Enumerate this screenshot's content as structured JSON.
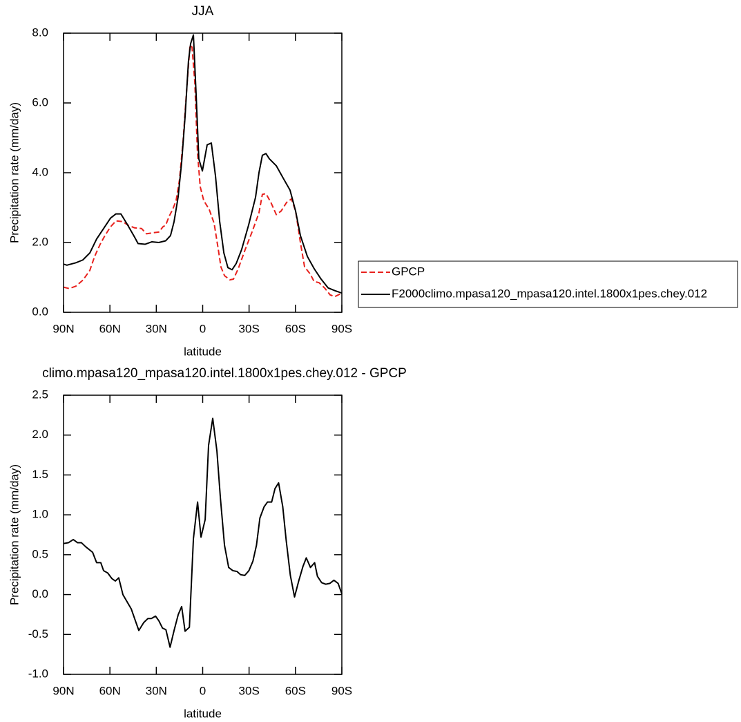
{
  "chart_data": [
    {
      "type": "line",
      "title": "JJA",
      "x_label": "latitude",
      "y_label": "Precipitation rate (mm/day)",
      "xlim": [
        90,
        -90
      ],
      "xticks": [
        {
          "value": 90,
          "label": "90N"
        },
        {
          "value": 60,
          "label": "60N"
        },
        {
          "value": 30,
          "label": "30N"
        },
        0,
        {
          "value": -30,
          "label": "30S"
        },
        {
          "value": -60,
          "label": "60S"
        },
        {
          "value": -90,
          "label": "90S"
        }
      ],
      "ylim": [
        0,
        8
      ],
      "yticks": [
        {
          "value": 0,
          "label": "0.0"
        },
        {
          "value": 2,
          "label": "2.0"
        },
        {
          "value": 4,
          "label": "4.0"
        },
        {
          "value": 6,
          "label": "6.0"
        },
        {
          "value": 8,
          "label": "8.0"
        }
      ],
      "legend": "outside-right",
      "series": [
        {
          "name": "GPCP",
          "color": "#e8201c",
          "line_style": "dashed",
          "x": [
            90,
            86.4,
            82,
            77.5,
            73,
            69.9,
            66.3,
            63.2,
            59.6,
            56.1,
            51.6,
            48.5,
            44,
            39.5,
            36.4,
            31.9,
            28.4,
            25.7,
            23.9,
            21.7,
            19.4,
            17.2,
            15,
            12.7,
            10.5,
            8.2,
            6.9,
            5.1,
            3.4,
            1.6,
            -0.7,
            -4.2,
            -7.4,
            -10.1,
            -11.8,
            -14.1,
            -17.6,
            -19.9,
            -23,
            -27.5,
            -31.9,
            -36.4,
            -38.6,
            -40.9,
            -44.1,
            -47.6,
            -50.7,
            -54.3,
            -57.4,
            -60.1,
            -63.2,
            -65.9,
            -69.5,
            -72.1,
            -75.2,
            -78.8,
            -82.4,
            -85.5,
            -90
          ],
          "values": [
            0.72,
            0.68,
            0.75,
            0.92,
            1.2,
            1.6,
            1.95,
            2.2,
            2.45,
            2.62,
            2.6,
            2.5,
            2.42,
            2.4,
            2.25,
            2.28,
            2.3,
            2.45,
            2.5,
            2.75,
            2.95,
            3.2,
            3.8,
            4.9,
            6.3,
            7.65,
            7.6,
            6.6,
            4.6,
            3.6,
            3.2,
            2.95,
            2.55,
            1.8,
            1.3,
            1.05,
            0.93,
            0.95,
            1.25,
            1.8,
            2.3,
            2.85,
            3.38,
            3.4,
            3.15,
            2.8,
            2.9,
            3.15,
            3.25,
            2.9,
            2.0,
            1.3,
            1.1,
            0.88,
            0.85,
            0.7,
            0.5,
            0.45,
            0.55
          ]
        },
        {
          "name": "F2000climo.mpasa120_mpasa120.intel.1800x1pes.chey.012",
          "color": "#000000",
          "line_style": "solid",
          "x": [
            90,
            87.8,
            82,
            77.5,
            73,
            68.6,
            64.1,
            59.6,
            56.1,
            52.9,
            48.5,
            44,
            41.8,
            37.3,
            32.8,
            28.4,
            23.9,
            20.8,
            18.5,
            15.9,
            13.6,
            11.4,
            9.2,
            7.8,
            6,
            4.2,
            2.5,
            0.2,
            -2.9,
            -5.6,
            -8.3,
            -11,
            -13.7,
            -16.3,
            -19,
            -21.7,
            -25.2,
            -29.7,
            -34.2,
            -36.4,
            -38.6,
            -40.9,
            -43.1,
            -47.6,
            -52,
            -56.5,
            -60.1,
            -63.2,
            -67.7,
            -72.1,
            -76.6,
            -81.1,
            -85.5,
            -90
          ],
          "values": [
            1.38,
            1.35,
            1.42,
            1.5,
            1.7,
            2.1,
            2.4,
            2.7,
            2.82,
            2.82,
            2.5,
            2.15,
            1.97,
            1.95,
            2.02,
            2.0,
            2.05,
            2.2,
            2.6,
            3.3,
            4.3,
            5.6,
            7.2,
            7.7,
            7.95,
            6.2,
            4.4,
            4.05,
            4.8,
            4.85,
            3.9,
            2.6,
            1.7,
            1.28,
            1.22,
            1.4,
            1.8,
            2.5,
            3.3,
            4.0,
            4.5,
            4.55,
            4.4,
            4.2,
            3.85,
            3.5,
            2.9,
            2.2,
            1.6,
            1.25,
            0.95,
            0.7,
            0.62,
            0.55
          ]
        }
      ]
    },
    {
      "type": "line",
      "title": "climo.mpasa120_mpasa120.intel.1800x1pes.chey.012 - GPCP",
      "x_label": "latitude",
      "y_label": "Precipitation rate (mm/day)",
      "xlim": [
        90,
        -90
      ],
      "xticks": [
        {
          "value": 90,
          "label": "90N"
        },
        {
          "value": 60,
          "label": "60N"
        },
        {
          "value": 30,
          "label": "30N"
        },
        0,
        {
          "value": -30,
          "label": "30S"
        },
        {
          "value": -60,
          "label": "60S"
        },
        {
          "value": -90,
          "label": "90S"
        }
      ],
      "ylim": [
        -1,
        2.5
      ],
      "yticks": [
        {
          "value": -1,
          "label": "-1.0"
        },
        {
          "value": -0.5,
          "label": "-0.5"
        },
        {
          "value": 0,
          "label": "0.0"
        },
        0.5,
        {
          "value": 1,
          "label": "1.0"
        },
        1.5,
        {
          "value": 2,
          "label": "2.0"
        },
        2.5
      ],
      "color": "#000000",
      "x": [
        90,
        86.9,
        83.7,
        80.9,
        78.4,
        75.7,
        71.2,
        68.6,
        65.9,
        64.1,
        61.4,
        58.7,
        56.5,
        54.3,
        51.6,
        46.2,
        43.5,
        41.3,
        38.1,
        35.4,
        33.2,
        30.5,
        28.3,
        26,
        23.8,
        21.1,
        18.5,
        15.8,
        13.6,
        11.4,
        8.6,
        6,
        3.3,
        1.1,
        -1.6,
        -3.8,
        -6.5,
        -9.2,
        -11.5,
        -14.1,
        -16.8,
        -19.5,
        -22.2,
        -24.5,
        -27.2,
        -29.9,
        -32.5,
        -34.8,
        -37,
        -39.7,
        -41.9,
        -44.6,
        -46.8,
        -49.1,
        -51.8,
        -54,
        -56.7,
        -59.4,
        -62.1,
        -64.8,
        -67,
        -69.7,
        -72.4,
        -74.2,
        -76.9,
        -79.6,
        -82.2,
        -84.9,
        -87.6,
        -90
      ],
      "values": [
        0.64,
        0.65,
        0.69,
        0.65,
        0.65,
        0.6,
        0.53,
        0.4,
        0.4,
        0.3,
        0.27,
        0.2,
        0.17,
        0.21,
        0.0,
        -0.18,
        -0.33,
        -0.45,
        -0.35,
        -0.3,
        -0.3,
        -0.27,
        -0.33,
        -0.42,
        -0.44,
        -0.66,
        -0.45,
        -0.25,
        -0.15,
        -0.46,
        -0.41,
        0.7,
        1.16,
        0.72,
        0.94,
        1.87,
        2.21,
        1.8,
        1.2,
        0.62,
        0.34,
        0.3,
        0.29,
        0.25,
        0.24,
        0.3,
        0.42,
        0.62,
        0.96,
        1.1,
        1.16,
        1.16,
        1.33,
        1.4,
        1.1,
        0.68,
        0.24,
        -0.03,
        0.17,
        0.35,
        0.46,
        0.34,
        0.4,
        0.23,
        0.15,
        0.13,
        0.14,
        0.18,
        0.14,
        0.01
      ]
    }
  ]
}
